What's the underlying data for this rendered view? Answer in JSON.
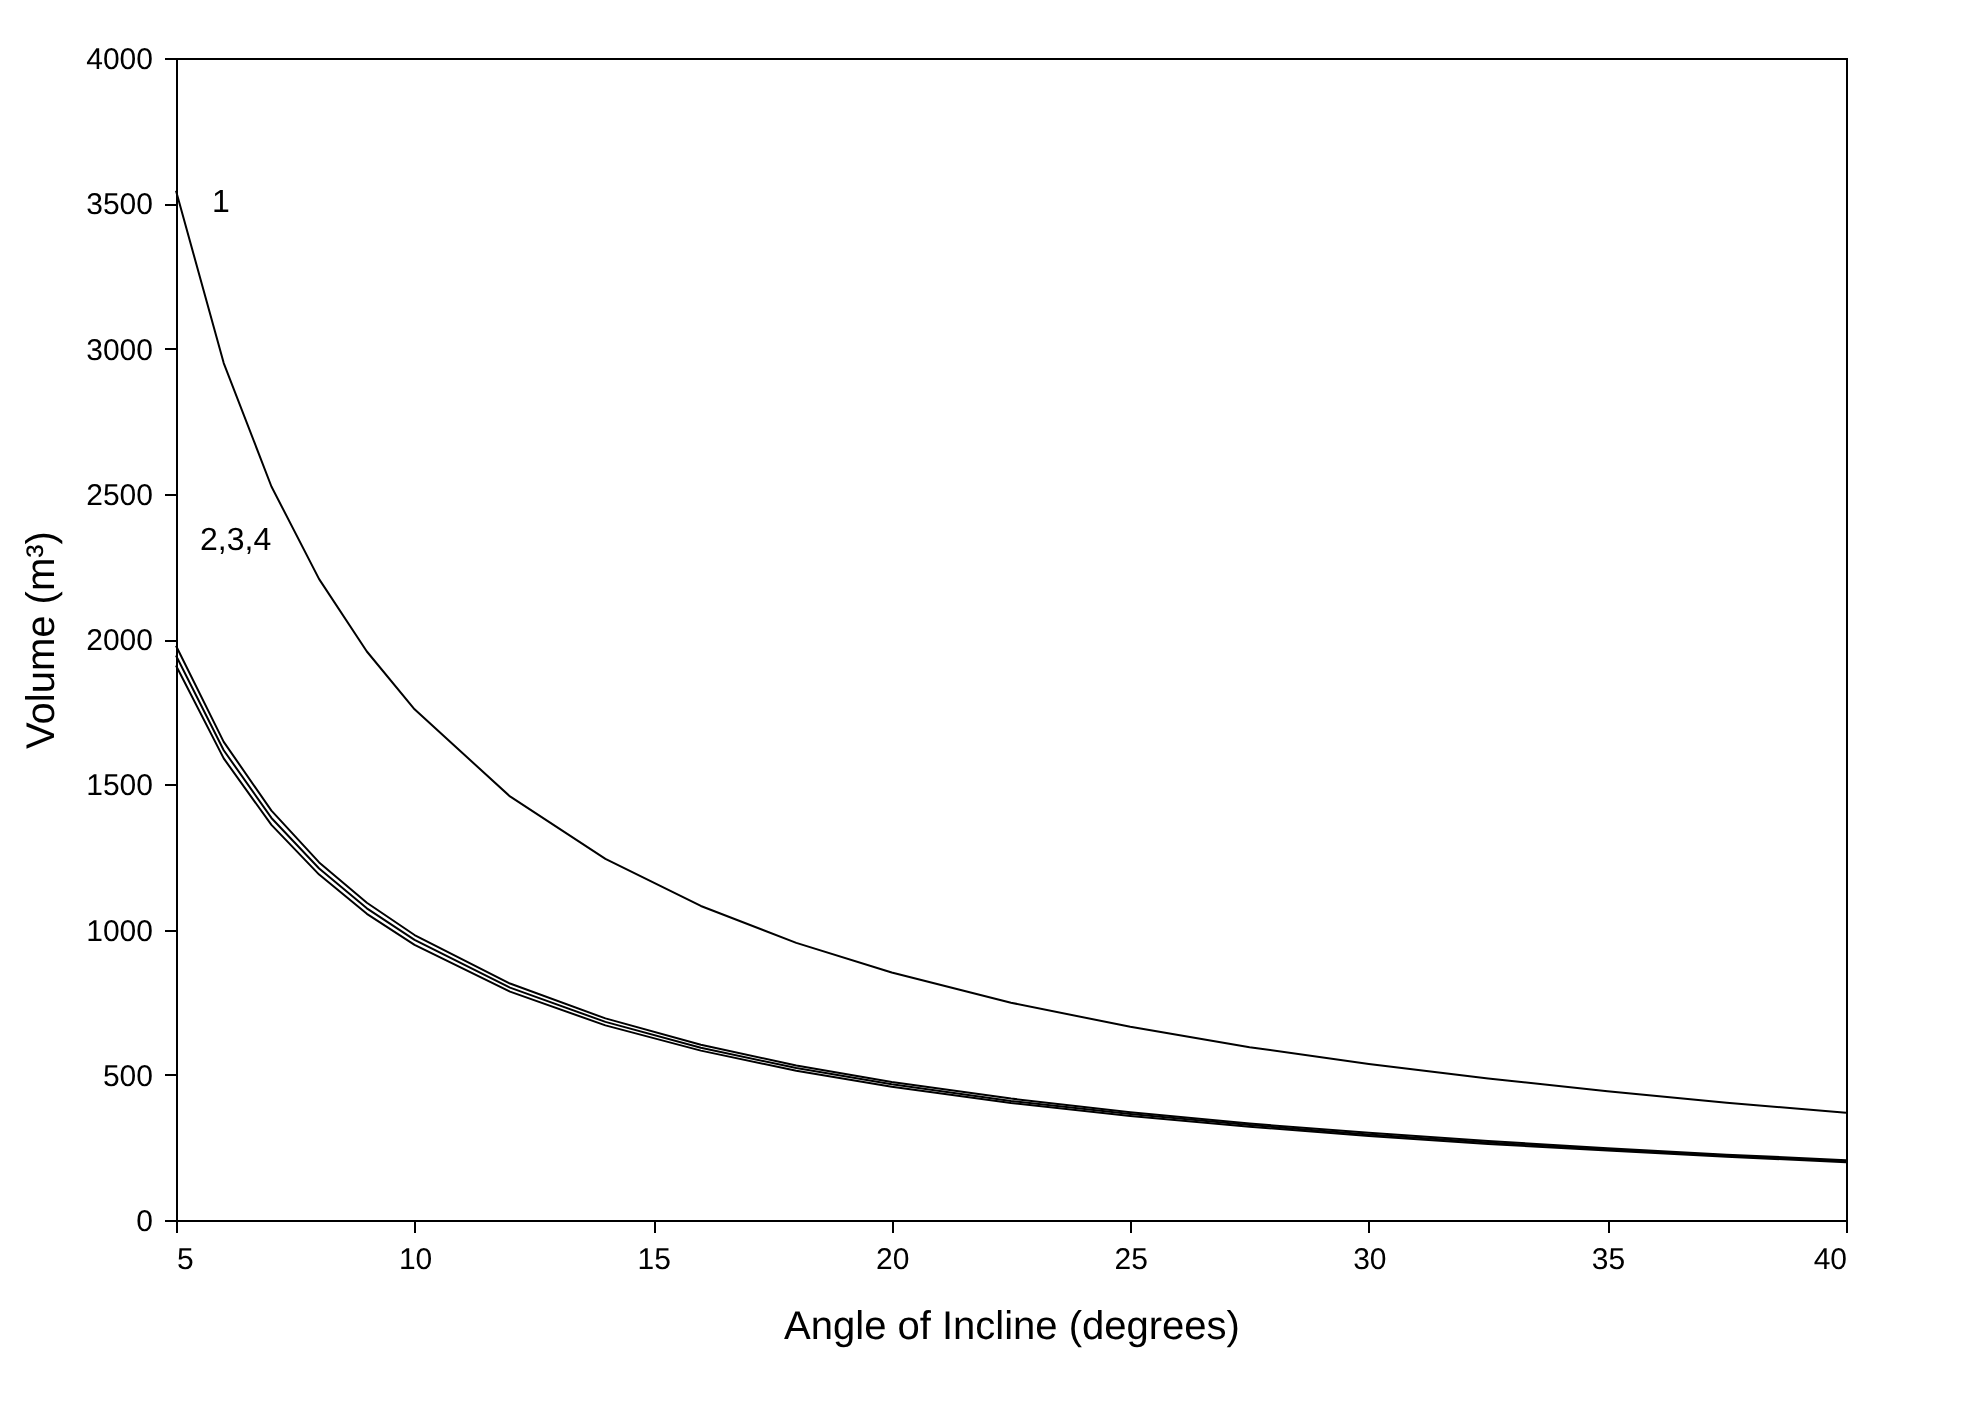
{
  "chart_data": {
    "type": "line",
    "xlabel": "Angle of Incline (degrees)",
    "ylabel": "Volume (m³)",
    "x": [
      5,
      6,
      7,
      8,
      9,
      10,
      12,
      14,
      16,
      18,
      20,
      22.5,
      25,
      27.5,
      30,
      32.5,
      35,
      37.5,
      40
    ],
    "xlim": [
      5,
      40
    ],
    "xticks": [
      5,
      10,
      15,
      20,
      25,
      30,
      35,
      40
    ],
    "ylim": [
      0,
      4000
    ],
    "yticks": [
      0,
      500,
      1000,
      1500,
      2000,
      2500,
      3000,
      3500,
      4000
    ],
    "grid": false,
    "legend": false,
    "marker": "none",
    "line_style": "solid",
    "series": [
      {
        "color": "#000000",
        "values": [
          3543,
          2950,
          2525,
          2206,
          1957,
          1758,
          1458,
          1243,
          1081,
          954,
          852,
          748,
          665,
          595,
          537,
          487,
          443,
          404,
          369
        ]
      },
      {
        "color": "#000000",
        "values": [
          1977,
          1646,
          1409,
          1231,
          1092,
          981,
          814,
          694,
          603,
          532,
          475,
          418,
          371,
          332,
          300,
          272,
          247,
          225,
          206
        ]
      },
      {
        "color": "#000000",
        "values": [
          1943,
          1617,
          1384,
          1210,
          1073,
          964,
          800,
          682,
          593,
          523,
          467,
          410,
          365,
          327,
          294,
          267,
          243,
          222,
          203
        ]
      },
      {
        "color": "#000000",
        "values": [
          1909,
          1589,
          1360,
          1189,
          1054,
          947,
          786,
          670,
          583,
          514,
          459,
          403,
          358,
          321,
          289,
          262,
          239,
          218,
          199
        ]
      }
    ],
    "annotations": [
      "1",
      "2,3,4"
    ]
  }
}
